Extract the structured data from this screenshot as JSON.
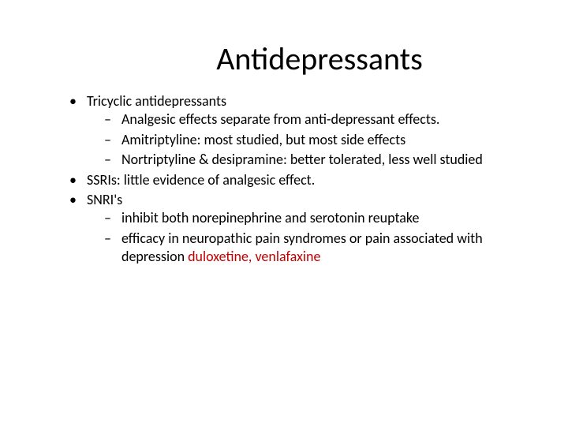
{
  "slide": {
    "title": "Antidepressants",
    "title_color": "#000000",
    "title_fontsize": 40,
    "body_fontsize": 18,
    "body_color": "#000000",
    "highlight_color": "#c00000",
    "background_color": "#ffffff",
    "bullets": [
      {
        "text": "Tricyclic antidepressants",
        "sub": [
          "Analgesic effects separate from anti-depressant effects.",
          "Amitriptyline: most studied, but most side effects",
          "Nortriptyline & desipramine: better tolerated, less well studied"
        ]
      },
      {
        "text": "SSRIs: little evidence of analgesic effect.",
        "sub": []
      },
      {
        "text": "SNRI's",
        "sub": [
          "inhibit both norepinephrine and serotonin reuptake",
          "efficacy in neuropathic pain syndromes or pain associated with depression duloxetine, venlafaxine"
        ],
        "highlight_in_last": "duloxetine, venlafaxine"
      }
    ]
  }
}
